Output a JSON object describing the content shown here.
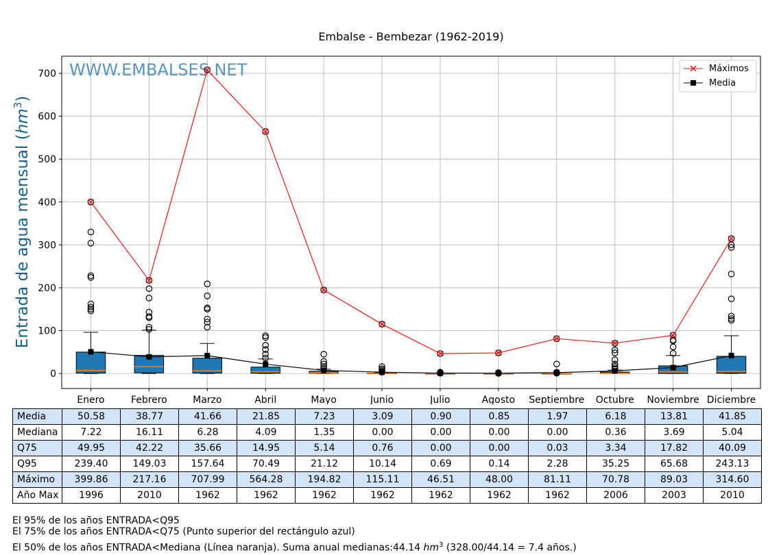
{
  "chart_data": {
    "type": "box",
    "title": "Embalse - Bembezar (1962-2019)",
    "watermark": "WWW.EMBALSES.NET",
    "ylabel": "Entrada de agua mensual (hm³)",
    "ylabel_prefix": "Entrada de agua mensual (",
    "ylabel_unit": "hm",
    "ylabel_exp": "3",
    "ylabel_suffix": ")",
    "ylim": [
      -35,
      740
    ],
    "yticks": [
      0,
      100,
      200,
      300,
      400,
      500,
      600,
      700
    ],
    "grid": true,
    "legend": {
      "placement": "top-right",
      "items": [
        "Máximos",
        "Media"
      ]
    },
    "colors": {
      "box": "#1f77b4",
      "median": "#ff7f0e",
      "max_line": "#e41a1c",
      "mean_line": "#000000",
      "watermark": "#5a96b8"
    },
    "categories": [
      "Enero",
      "Febrero",
      "Marzo",
      "Abril",
      "Mayo",
      "Junio",
      "Julio",
      "Agosto",
      "Septiembre",
      "Octubre",
      "Noviembre",
      "Diciembre"
    ],
    "series": [
      {
        "name": "Máximos",
        "values": [
          399.86,
          217.16,
          707.99,
          564.28,
          194.82,
          115.11,
          46.51,
          48.0,
          81.11,
          70.78,
          89.03,
          314.6
        ]
      },
      {
        "name": "Media",
        "values": [
          50.58,
          38.77,
          41.66,
          21.85,
          7.23,
          3.09,
          0.9,
          0.85,
          1.97,
          6.18,
          13.81,
          41.85
        ]
      }
    ],
    "boxes": [
      {
        "q1": 1.0,
        "median": 7.22,
        "q3": 49.95,
        "whisker_low": 0,
        "whisker_high": 96,
        "outliers": [
          146,
          150,
          155,
          162,
          224,
          228,
          304,
          330,
          399.86
        ]
      },
      {
        "q1": 1.5,
        "median": 16.11,
        "q3": 42.22,
        "whisker_low": 0,
        "whisker_high": 101,
        "outliers": [
          103,
          108,
          130,
          133,
          143,
          176,
          198,
          217.16
        ]
      },
      {
        "q1": 1.0,
        "median": 6.28,
        "q3": 35.66,
        "whisker_low": 0,
        "whisker_high": 70,
        "outliers": [
          108,
          120,
          127,
          150,
          153,
          181,
          209,
          707.99
        ]
      },
      {
        "q1": 0.5,
        "median": 4.09,
        "q3": 14.95,
        "whisker_low": 0,
        "whisker_high": 34,
        "outliers": [
          36,
          45,
          56,
          66,
          84,
          88,
          564.28
        ]
      },
      {
        "q1": 0.3,
        "median": 1.35,
        "q3": 5.14,
        "whisker_low": 0,
        "whisker_high": 10,
        "outliers": [
          12,
          16,
          22,
          28,
          45,
          194.82
        ]
      },
      {
        "q1": 0,
        "median": 0,
        "q3": 0.76,
        "whisker_low": 0,
        "whisker_high": 2,
        "outliers": [
          3,
          5,
          8,
          11,
          16,
          115.11
        ]
      },
      {
        "q1": 0,
        "median": 0,
        "q3": 0,
        "whisker_low": 0,
        "whisker_high": 0,
        "outliers": [
          0.5,
          1,
          2,
          3,
          46.51
        ]
      },
      {
        "q1": 0,
        "median": 0,
        "q3": 0,
        "whisker_low": 0,
        "whisker_high": 0,
        "outliers": [
          0.3,
          1,
          2,
          48.0
        ]
      },
      {
        "q1": 0,
        "median": 0,
        "q3": 0.03,
        "whisker_low": 0,
        "whisker_high": 0.1,
        "outliers": [
          0.5,
          2,
          3,
          22,
          81.11
        ]
      },
      {
        "q1": 0,
        "median": 0.36,
        "q3": 3.34,
        "whisker_low": 0,
        "whisker_high": 8,
        "outliers": [
          10,
          13,
          17,
          22,
          32,
          48,
          55,
          70.78
        ]
      },
      {
        "q1": 0,
        "median": 3.69,
        "q3": 17.82,
        "whisker_low": 0,
        "whisker_high": 42,
        "outliers": [
          47,
          62,
          76,
          78,
          89.03
        ]
      },
      {
        "q1": 0.5,
        "median": 5.04,
        "q3": 40.09,
        "whisker_low": 0,
        "whisker_high": 88,
        "outliers": [
          124,
          128,
          134,
          174,
          232,
          294,
          300,
          314.6
        ]
      }
    ]
  },
  "table": {
    "rows": [
      {
        "label": "Media",
        "values": [
          "50.58",
          "38.77",
          "41.66",
          "21.85",
          "7.23",
          "3.09",
          "0.90",
          "0.85",
          "1.97",
          "6.18",
          "13.81",
          "41.85"
        ]
      },
      {
        "label": "Mediana",
        "values": [
          "7.22",
          "16.11",
          "6.28",
          "4.09",
          "1.35",
          "0.00",
          "0.00",
          "0.00",
          "0.00",
          "0.36",
          "3.69",
          "5.04"
        ]
      },
      {
        "label": "Q75",
        "values": [
          "49.95",
          "42.22",
          "35.66",
          "14.95",
          "5.14",
          "0.76",
          "0.00",
          "0.00",
          "0.03",
          "3.34",
          "17.82",
          "40.09"
        ]
      },
      {
        "label": "Q95",
        "values": [
          "239.40",
          "149.03",
          "157.64",
          "70.49",
          "21.12",
          "10.14",
          "0.69",
          "0.14",
          "2.28",
          "35.25",
          "65.68",
          "243.13"
        ]
      },
      {
        "label": "Máximo",
        "values": [
          "399.86",
          "217.16",
          "707.99",
          "564.28",
          "194.82",
          "115.11",
          "46.51",
          "48.00",
          "81.11",
          "70.78",
          "89.03",
          "314.60"
        ]
      },
      {
        "label": "Año Max",
        "values": [
          "1996",
          "2010",
          "1962",
          "1962",
          "1962",
          "1962",
          "1962",
          "1962",
          "1962",
          "2006",
          "2003",
          "2010"
        ]
      }
    ]
  },
  "notes": {
    "line1": "El 95% de los años ENTRADA<Q95",
    "line2": "El 75% de los años ENTRADA<Q75 (Punto superior del rectángulo azul)",
    "line3_prefix": "El 50% de los años ENTRADA<Mediana (Línea naranja). Suma anual medianas:44.14 ",
    "line3_unit": "hm",
    "line3_exp": "3",
    "line3_suffix": " (328.00/44.14 = 7.4 años.)"
  }
}
